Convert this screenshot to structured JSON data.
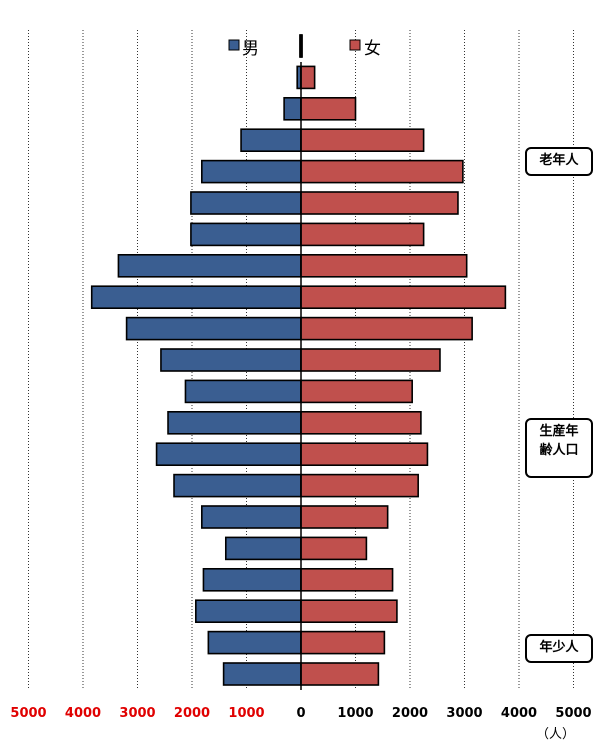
{
  "chart_data": {
    "type": "bar",
    "orientation": "horizontal-population-pyramid",
    "series": [
      {
        "name": "男",
        "color": "#3a5e91",
        "values": [
          1420,
          1700,
          1930,
          1790,
          1380,
          1820,
          2330,
          2650,
          2440,
          2120,
          2570,
          3200,
          3840,
          3350,
          2020,
          2020,
          1820,
          1100,
          310,
          70,
          20
        ]
      },
      {
        "name": "女",
        "color": "#c0504d",
        "values": [
          1420,
          1530,
          1760,
          1680,
          1200,
          1590,
          2150,
          2320,
          2200,
          2040,
          2550,
          3140,
          3750,
          3040,
          2250,
          2880,
          2970,
          2250,
          1000,
          250,
          20
        ]
      }
    ],
    "xlim": [
      -5000,
      5000
    ],
    "x_tick_labels_left": [
      "5000",
      "4000",
      "3000",
      "2000",
      "1000"
    ],
    "x_tick_labels_right": [
      "0",
      "1000",
      "2000",
      "3000",
      "4000",
      "5000"
    ],
    "unit_label": "（人）",
    "legend": {
      "male": "男",
      "female": "女",
      "placement": "top-center"
    },
    "group_labels": [
      {
        "label": "老年人"
      },
      {
        "label": "生産年\n齢人口"
      },
      {
        "label": "年少人"
      }
    ],
    "grid": true
  }
}
